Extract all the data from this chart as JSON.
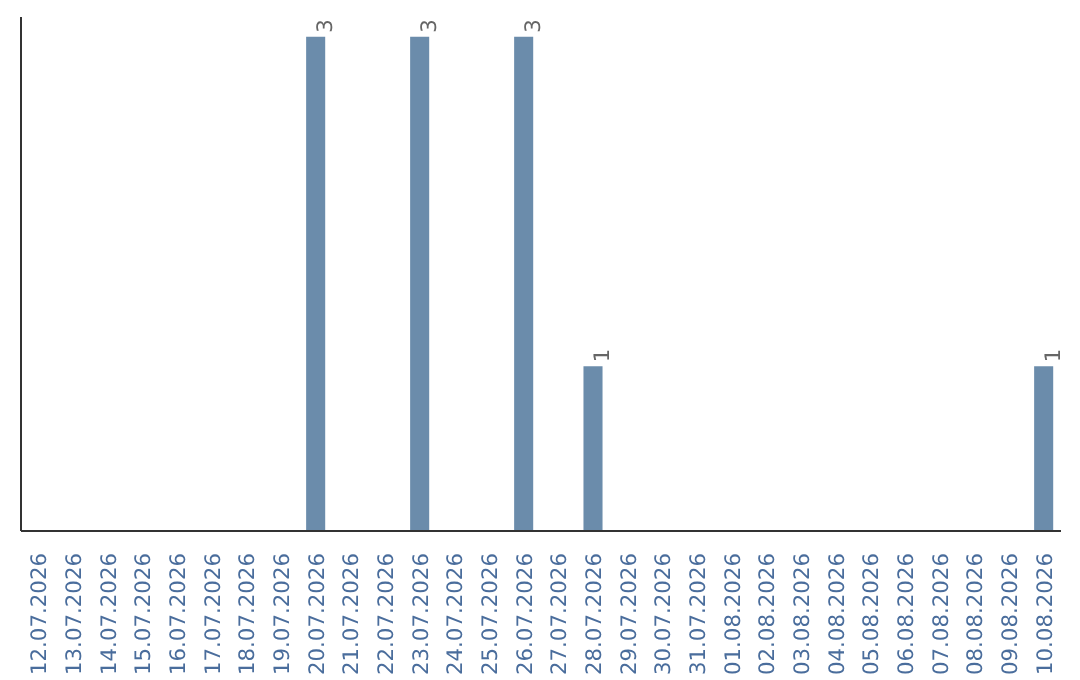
{
  "chart_data": {
    "type": "bar",
    "categories": [
      "12.07.2026",
      "13.07.2026",
      "14.07.2026",
      "15.07.2026",
      "16.07.2026",
      "17.07.2026",
      "18.07.2026",
      "19.07.2026",
      "20.07.2026",
      "21.07.2026",
      "22.07.2026",
      "23.07.2026",
      "24.07.2026",
      "25.07.2026",
      "26.07.2026",
      "27.07.2026",
      "28.07.2026",
      "29.07.2026",
      "30.07.2026",
      "31.07.2026",
      "01.08.2026",
      "02.08.2026",
      "03.08.2026",
      "04.08.2026",
      "05.08.2026",
      "06.08.2026",
      "07.08.2026",
      "08.08.2026",
      "09.08.2026",
      "10.08.2026"
    ],
    "values": [
      0,
      0,
      0,
      0,
      0,
      0,
      0,
      0,
      3,
      0,
      0,
      3,
      0,
      0,
      3,
      0,
      1,
      0,
      0,
      0,
      0,
      0,
      0,
      0,
      0,
      0,
      0,
      0,
      0,
      1
    ],
    "value_labels": [
      null,
      null,
      null,
      null,
      null,
      null,
      null,
      null,
      "3",
      null,
      null,
      "3",
      null,
      null,
      "3",
      null,
      "1",
      null,
      null,
      null,
      null,
      null,
      null,
      null,
      null,
      null,
      null,
      null,
      null,
      "1"
    ],
    "color": "#6b8cab",
    "tick_labels": "x",
    "grid": false
  }
}
